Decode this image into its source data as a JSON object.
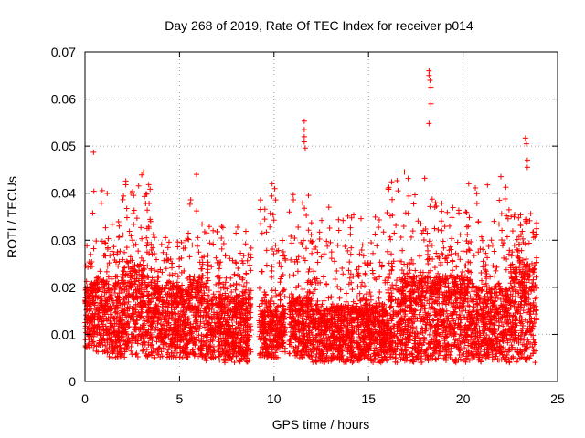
{
  "chart_data": {
    "type": "scatter",
    "title": "Day 268 of 2019, Rate Of TEC Index for receiver p014",
    "xlabel": "GPS time / hours",
    "ylabel": "ROTI / TECUs",
    "xlim": [
      0,
      25
    ],
    "ylim": [
      0,
      0.07
    ],
    "xticks": [
      0,
      5,
      10,
      15,
      20,
      25
    ],
    "yticks": [
      0,
      0.01,
      0.02,
      0.03,
      0.04,
      0.05,
      0.06,
      0.07
    ],
    "xtick_labels": [
      "0",
      "5",
      "10",
      "15",
      "20",
      "25"
    ],
    "ytick_labels": [
      "0",
      "0.01",
      "0.02",
      "0.03",
      "0.04",
      "0.05",
      "0.06",
      "0.07"
    ],
    "grid": true,
    "marker": "+",
    "color": "#ff0000",
    "density_profile": [
      {
        "x": [
          0.0,
          0.4
        ],
        "base": [
          0.007,
          0.02
        ],
        "peak": 0.03
      },
      {
        "x": [
          0.4,
          1.2
        ],
        "base": [
          0.006,
          0.022
        ],
        "peak": 0.042
      },
      {
        "x": [
          1.2,
          2.0
        ],
        "base": [
          0.005,
          0.02
        ],
        "peak": 0.035
      },
      {
        "x": [
          2.0,
          3.5
        ],
        "base": [
          0.005,
          0.024
        ],
        "peak": 0.044
      },
      {
        "x": [
          3.5,
          5.5
        ],
        "base": [
          0.005,
          0.02
        ],
        "peak": 0.032
      },
      {
        "x": [
          5.5,
          6.2
        ],
        "base": [
          0.005,
          0.022
        ],
        "peak": 0.043
      },
      {
        "x": [
          6.2,
          8.8
        ],
        "base": [
          0.004,
          0.018
        ],
        "peak": 0.033
      },
      {
        "x": [
          9.2,
          10.2
        ],
        "base": [
          0.005,
          0.016
        ],
        "peak": 0.041
      },
      {
        "x": [
          10.2,
          10.6
        ],
        "base": [
          0.006,
          0.015
        ],
        "peak": 0.03
      },
      {
        "x": [
          10.8,
          12.0
        ],
        "base": [
          0.005,
          0.018
        ],
        "peak": 0.041
      },
      {
        "x": [
          12.0,
          16.0
        ],
        "base": [
          0.004,
          0.016
        ],
        "peak": 0.036
      },
      {
        "x": [
          16.0,
          18.0
        ],
        "base": [
          0.004,
          0.022
        ],
        "peak": 0.044
      },
      {
        "x": [
          18.0,
          20.5
        ],
        "base": [
          0.004,
          0.022
        ],
        "peak": 0.039
      },
      {
        "x": [
          20.5,
          22.5
        ],
        "base": [
          0.004,
          0.02
        ],
        "peak": 0.043
      },
      {
        "x": [
          22.5,
          23.9
        ],
        "base": [
          0.004,
          0.024
        ],
        "peak": 0.038
      }
    ],
    "outliers": [
      {
        "x": 0.45,
        "y": 0.0487
      },
      {
        "x": 11.6,
        "y": 0.0553
      },
      {
        "x": 11.6,
        "y": 0.0535
      },
      {
        "x": 11.6,
        "y": 0.052
      },
      {
        "x": 11.6,
        "y": 0.0509
      },
      {
        "x": 11.65,
        "y": 0.0496
      },
      {
        "x": 18.2,
        "y": 0.066
      },
      {
        "x": 18.2,
        "y": 0.065
      },
      {
        "x": 18.25,
        "y": 0.064
      },
      {
        "x": 18.3,
        "y": 0.0625
      },
      {
        "x": 18.3,
        "y": 0.059
      },
      {
        "x": 18.2,
        "y": 0.0548
      },
      {
        "x": 23.3,
        "y": 0.0517
      },
      {
        "x": 23.35,
        "y": 0.0505
      },
      {
        "x": 23.4,
        "y": 0.047
      },
      {
        "x": 23.4,
        "y": 0.0455
      },
      {
        "x": 22.0,
        "y": 0.0435
      },
      {
        "x": 3.1,
        "y": 0.0445
      },
      {
        "x": 5.9,
        "y": 0.044
      },
      {
        "x": 16.9,
        "y": 0.0445
      },
      {
        "x": 12.9,
        "y": 0.037
      },
      {
        "x": 20.3,
        "y": 0.042
      },
      {
        "x": 9.9,
        "y": 0.042
      }
    ]
  }
}
